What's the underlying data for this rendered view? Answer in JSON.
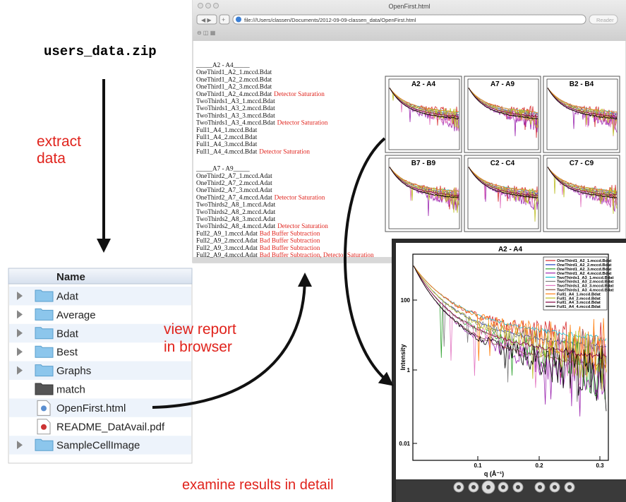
{
  "zip_file": "users_data.zip",
  "steps": {
    "extract": [
      "extract",
      "data"
    ],
    "view": [
      "view report",
      "in browser"
    ],
    "examine": "examine results in detail"
  },
  "browser": {
    "title": "OpenFirst.html",
    "url": "file:///Users/classen/Documents/2012-09-09-classen_data/OpenFirst.html",
    "reader": "Reader"
  },
  "report": [
    {
      "heading": "_____A2 - A4_____",
      "lines": [
        {
          "file": "OneThird1_A2_1.mccd.Bdat"
        },
        {
          "file": "OneThird1_A2_2.mccd.Bdat"
        },
        {
          "file": "OneThird1_A2_3.mccd.Bdat"
        },
        {
          "file": "OneThird1_A2_4.mccd.Bdat",
          "note": "Detector Saturation"
        },
        {
          "file": "TwoThirds1_A3_1.mccd.Bdat"
        },
        {
          "file": "TwoThirds1_A3_2.mccd.Bdat"
        },
        {
          "file": "TwoThirds1_A3_3.mccd.Bdat"
        },
        {
          "file": "TwoThirds1_A3_4.mccd.Bdat",
          "note": "Detector Saturation"
        },
        {
          "file": "Full1_A4_1.mccd.Bdat"
        },
        {
          "file": "Full1_A4_2.mccd.Bdat"
        },
        {
          "file": "Full1_A4_3.mccd.Bdat"
        },
        {
          "file": "Full1_A4_4.mccd.Bdat",
          "note": "Detector Saturation"
        }
      ]
    },
    {
      "heading": "_____A7 - A9_____",
      "lines": [
        {
          "file": "OneThird2_A7_1.mccd.Adat"
        },
        {
          "file": "OneThird2_A7_2.mccd.Adat"
        },
        {
          "file": "OneThird2_A7_3.mccd.Adat"
        },
        {
          "file": "OneThird2_A7_4.mccd.Adat",
          "note": "Detector Saturation"
        },
        {
          "file": "TwoThirds2_A8_1.mccd.Adat"
        },
        {
          "file": "TwoThirds2_A8_2.mccd.Adat"
        },
        {
          "file": "TwoThirds2_A8_3.mccd.Adat"
        },
        {
          "file": "TwoThirds2_A8_4.mccd.Adat",
          "note": "Detector Saturation"
        },
        {
          "file": "Full2_A9_1.mccd.Adat",
          "note": "Bad Buffer Subtraction"
        },
        {
          "file": "Full2_A9_2.mccd.Adat",
          "note": "Bad Buffer Subtraction"
        },
        {
          "file": "Full2_A9_3.mccd.Adat",
          "note": "Bad Buffer Subtraction"
        },
        {
          "file": "Full2_A9_4.mccd.Adat",
          "note": "Bad Buffer Subtraction, Detector Saturation"
        }
      ]
    }
  ],
  "thumbnails": [
    "A2 - A4",
    "A7 - A9",
    "B2 - B4",
    "B7 - B9",
    "C2 - C4",
    "C7 - C9"
  ],
  "file_list": {
    "header": "Name",
    "items": [
      {
        "name": "Adat",
        "icon": "folder"
      },
      {
        "name": "Average",
        "icon": "folder"
      },
      {
        "name": "Bdat",
        "icon": "folder"
      },
      {
        "name": "Best",
        "icon": "folder"
      },
      {
        "name": "Graphs",
        "icon": "folder"
      },
      {
        "name": "match",
        "icon": "dark-folder"
      },
      {
        "name": "OpenFirst.html",
        "icon": "html"
      },
      {
        "name": "README_DatAvail.pdf",
        "icon": "pdf"
      },
      {
        "name": "SampleCellImage",
        "icon": "folder"
      }
    ]
  },
  "plot": {
    "title": "A2 - A4",
    "y_label": "Intensity",
    "x_label": "q (Å⁻¹)",
    "y_ticks": [
      "100",
      "1",
      "0.01"
    ],
    "x_ticks": [
      "0.1",
      "0.2",
      "0.3"
    ],
    "legend": [
      {
        "name": "OneThird1_A2_1.mccd.Bdat",
        "color": "#d62728"
      },
      {
        "name": "OneThird1_A2_2.mccd.Bdat",
        "color": "#1f3fbf"
      },
      {
        "name": "OneThird1_A2_3.mccd.Bdat",
        "color": "#2ca02c"
      },
      {
        "name": "OneThird1_A2_4.mccd.Bdat",
        "color": "#9c27b0"
      },
      {
        "name": "TwoThirds1_A3_1.mccd.Bdat",
        "color": "#17becf"
      },
      {
        "name": "TwoThirds1_A3_2.mccd.Bdat",
        "color": "#7f7f7f"
      },
      {
        "name": "TwoThirds1_A3_3.mccd.Bdat",
        "color": "#e377c2"
      },
      {
        "name": "TwoThirds1_A3_4.mccd.Bdat",
        "color": "#8c564b"
      },
      {
        "name": "Full1_A4_1.mccd.Bdat",
        "color": "#ff7f0e"
      },
      {
        "name": "Full1_A4_2.mccd.Bdat",
        "color": "#bcbd22"
      },
      {
        "name": "Full1_A4_3.mccd.Bdat",
        "color": "#800040"
      },
      {
        "name": "Full1_A4_4.mccd.Bdat",
        "color": "#000000"
      }
    ]
  }
}
